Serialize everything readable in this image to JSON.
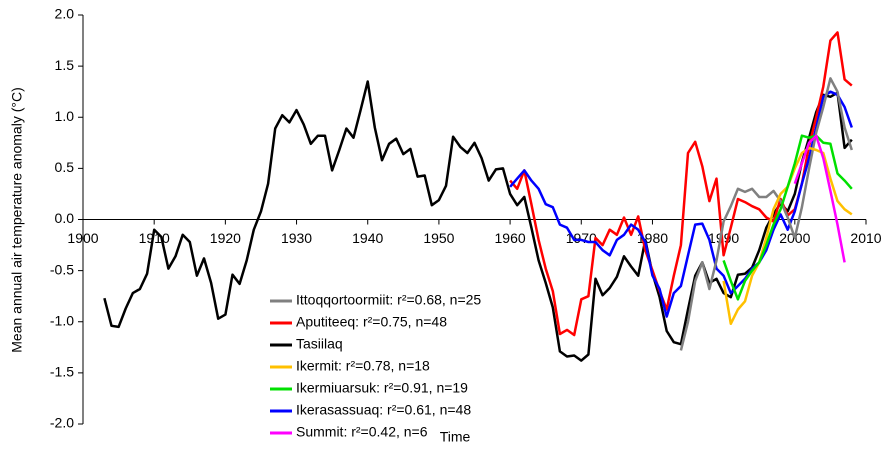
{
  "chart_data": {
    "type": "line",
    "xlabel": "Time",
    "ylabel": "Mean annual air temperature anomaly (°C)",
    "xlim": [
      1900,
      2010
    ],
    "xticks": [
      1900,
      1910,
      1920,
      1930,
      1940,
      1950,
      1960,
      1970,
      1980,
      1990,
      2000,
      2010
    ],
    "ylim": [
      -2,
      2
    ],
    "yticks": [
      {
        "value": -2,
        "label": "-2.0"
      },
      {
        "value": -1.5,
        "label": "-1.5"
      },
      {
        "value": -1,
        "label": "-1.0"
      },
      -0.5,
      {
        "value": 0,
        "label": "0.0"
      },
      0.5,
      {
        "value": 1,
        "label": "1.0"
      },
      {
        "value": 1.5,
        "label": "1.5"
      },
      {
        "value": 2,
        "label": "2.0"
      }
    ],
    "grid": false,
    "legend": "lower-center",
    "series": [
      {
        "name": "Ittoqqortoormiit: r²=0.68, n=25",
        "color": "#808080",
        "x": [
          1984,
          1985,
          1986,
          1987,
          1988,
          1989,
          1990,
          1991,
          1992,
          1993,
          1994,
          1995,
          1996,
          1997,
          1998,
          1999,
          2000,
          2001,
          2002,
          2003,
          2004,
          2005,
          2006,
          2007,
          2008
        ],
        "values": [
          -1.28,
          -1.0,
          -0.6,
          -0.42,
          -0.68,
          -0.4,
          -0.02,
          0.13,
          0.3,
          0.27,
          0.3,
          0.22,
          0.22,
          0.28,
          0.18,
          0.02,
          -0.18,
          0.12,
          0.5,
          0.85,
          1.1,
          1.38,
          1.25,
          0.9,
          0.68
        ]
      },
      {
        "name": "Aputiteeq: r²=0.75, n=48",
        "color": "#ff0000",
        "x": [
          1960,
          1961,
          1962,
          1963,
          1964,
          1965,
          1966,
          1967,
          1968,
          1969,
          1970,
          1971,
          1972,
          1973,
          1974,
          1975,
          1976,
          1977,
          1978,
          1979,
          1980,
          1981,
          1982,
          1983,
          1984,
          1985,
          1986,
          1987,
          1988,
          1989,
          1990,
          1991,
          1992,
          1993,
          1994,
          1995,
          1996,
          1997,
          1998,
          1999,
          2000,
          2001,
          2002,
          2003,
          2004,
          2005,
          2006,
          2007,
          2008
        ],
        "values": [
          0.38,
          0.3,
          0.48,
          0.15,
          -0.2,
          -0.48,
          -0.7,
          -1.12,
          -1.08,
          -1.13,
          -0.78,
          -0.75,
          -0.18,
          -0.25,
          -0.1,
          -0.15,
          0.02,
          -0.15,
          0.03,
          -0.3,
          -0.5,
          -0.7,
          -0.88,
          -0.55,
          -0.25,
          0.65,
          0.76,
          0.52,
          0.18,
          0.4,
          -0.35,
          -0.08,
          0.2,
          0.17,
          0.13,
          0.1,
          0.02,
          -0.02,
          0.2,
          0.04,
          0.1,
          0.35,
          0.72,
          1.0,
          1.3,
          1.75,
          1.83,
          1.37,
          1.31
        ]
      },
      {
        "name": "Tasiilaq",
        "color": "#000000",
        "x": [
          1903,
          1904,
          1905,
          1906,
          1907,
          1908,
          1909,
          1910,
          1911,
          1912,
          1913,
          1914,
          1915,
          1916,
          1917,
          1918,
          1919,
          1920,
          1921,
          1922,
          1923,
          1924,
          1925,
          1926,
          1927,
          1928,
          1929,
          1930,
          1931,
          1932,
          1933,
          1934,
          1935,
          1936,
          1937,
          1938,
          1939,
          1940,
          1941,
          1942,
          1943,
          1944,
          1945,
          1946,
          1947,
          1948,
          1949,
          1950,
          1951,
          1952,
          1953,
          1954,
          1955,
          1956,
          1957,
          1958,
          1959,
          1960,
          1961,
          1962,
          1963,
          1964,
          1965,
          1966,
          1967,
          1968,
          1969,
          1970,
          1971,
          1972,
          1973,
          1974,
          1975,
          1976,
          1977,
          1978,
          1979,
          1980,
          1981,
          1982,
          1983,
          1984,
          1985,
          1986,
          1987,
          1988,
          1989,
          1990,
          1991,
          1992,
          1993,
          1994,
          1995,
          1996,
          1997,
          1998,
          1999,
          2000,
          2001,
          2002,
          2003,
          2004,
          2005,
          2006,
          2007,
          2008
        ],
        "values": [
          -0.77,
          -1.04,
          -1.05,
          -0.87,
          -0.72,
          -0.68,
          -0.53,
          -0.1,
          -0.17,
          -0.48,
          -0.36,
          -0.15,
          -0.22,
          -0.55,
          -0.38,
          -0.62,
          -0.97,
          -0.93,
          -0.54,
          -0.63,
          -0.4,
          -0.1,
          0.08,
          0.35,
          0.89,
          1.02,
          0.95,
          1.07,
          0.93,
          0.74,
          0.82,
          0.82,
          0.48,
          0.68,
          0.89,
          0.8,
          1.07,
          1.35,
          0.9,
          0.58,
          0.74,
          0.79,
          0.64,
          0.69,
          0.42,
          0.43,
          0.14,
          0.19,
          0.33,
          0.81,
          0.71,
          0.65,
          0.75,
          0.6,
          0.38,
          0.49,
          0.5,
          0.25,
          0.14,
          0.22,
          -0.08,
          -0.4,
          -0.62,
          -0.86,
          -1.29,
          -1.34,
          -1.33,
          -1.38,
          -1.32,
          -0.58,
          -0.74,
          -0.67,
          -0.56,
          -0.36,
          -0.46,
          -0.55,
          -0.2,
          -0.53,
          -0.76,
          -1.09,
          -1.2,
          -1.22,
          -0.88,
          -0.55,
          -0.42,
          -0.62,
          -0.58,
          -0.72,
          -0.76,
          -0.54,
          -0.53,
          -0.47,
          -0.3,
          -0.08,
          0.05,
          0.16,
          0.08,
          0.25,
          0.56,
          0.8,
          1.05,
          1.22,
          1.2,
          1.24,
          0.7,
          0.78
        ]
      },
      {
        "name": "Ikermit: r²=0.78, n=18",
        "color": "#ffc000",
        "x": [
          1990,
          1991,
          1992,
          1993,
          1994,
          1995,
          1996,
          1997,
          1998,
          1999,
          2000,
          2001,
          2002,
          2003,
          2004,
          2005,
          2006,
          2007,
          2008
        ],
        "values": [
          -0.6,
          -1.02,
          -0.88,
          -0.8,
          -0.55,
          -0.42,
          -0.18,
          0.1,
          0.25,
          0.32,
          0.5,
          0.65,
          0.7,
          0.68,
          0.65,
          0.4,
          0.18,
          0.1,
          0.05
        ]
      },
      {
        "name": "Ikermiuarsuk: r²=0.91, n=19",
        "color": "#00e000",
        "x": [
          1990,
          1991,
          1992,
          1993,
          1994,
          1995,
          1996,
          1997,
          1998,
          1999,
          2000,
          2001,
          2002,
          2003,
          2004,
          2005,
          2006,
          2007,
          2008
        ],
        "values": [
          -0.4,
          -0.6,
          -0.78,
          -0.6,
          -0.5,
          -0.42,
          -0.25,
          -0.05,
          0.1,
          0.32,
          0.55,
          0.82,
          0.8,
          0.82,
          0.75,
          0.74,
          0.45,
          0.38,
          0.3
        ]
      },
      {
        "name": "Ikerasassuaq: r²=0.61, n=48",
        "color": "#0000ff",
        "x": [
          1960,
          1961,
          1962,
          1963,
          1964,
          1965,
          1966,
          1967,
          1968,
          1969,
          1970,
          1971,
          1972,
          1973,
          1974,
          1975,
          1976,
          1977,
          1978,
          1979,
          1980,
          1981,
          1982,
          1983,
          1984,
          1985,
          1986,
          1987,
          1988,
          1989,
          1990,
          1991,
          1992,
          1993,
          1994,
          1995,
          1996,
          1997,
          1998,
          1999,
          2000,
          2001,
          2002,
          2003,
          2004,
          2005,
          2006,
          2007,
          2008
        ],
        "values": [
          0.32,
          0.4,
          0.48,
          0.38,
          0.3,
          0.15,
          0.12,
          -0.05,
          -0.08,
          -0.2,
          -0.2,
          -0.22,
          -0.22,
          -0.3,
          -0.35,
          -0.2,
          -0.15,
          -0.05,
          -0.1,
          -0.22,
          -0.55,
          -0.68,
          -0.95,
          -0.72,
          -0.65,
          -0.35,
          -0.05,
          -0.04,
          -0.2,
          -0.48,
          -0.55,
          -0.72,
          -0.65,
          -0.58,
          -0.48,
          -0.42,
          -0.3,
          -0.1,
          0.05,
          -0.1,
          0.08,
          0.35,
          0.6,
          0.9,
          1.2,
          1.25,
          1.22,
          1.1,
          0.9
        ]
      },
      {
        "name": "Summit: r²=0.42, n=6",
        "color": "#ff00ff",
        "x": [
          2000,
          2001,
          2002,
          2003,
          2004,
          2005,
          2006,
          2007
        ],
        "values": [
          0.35,
          0.55,
          0.75,
          0.82,
          0.6,
          0.28,
          -0.05,
          -0.42
        ]
      }
    ]
  }
}
